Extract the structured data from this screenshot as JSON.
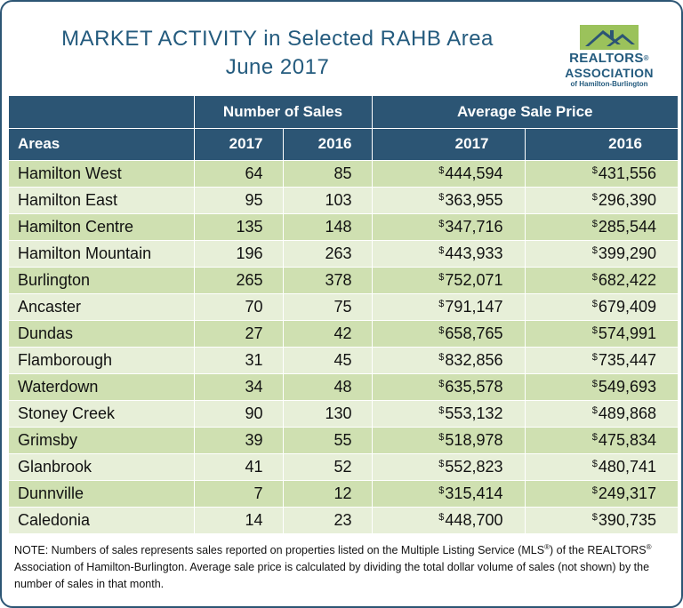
{
  "header": {
    "title_line1": "MARKET ACTIVITY in Selected RAHB Area",
    "title_line2": "June 2017"
  },
  "logo": {
    "icon": "house-roof-icon",
    "line1": "REALTORS",
    "line1_mark": "®",
    "line2": "ASSOCIATION",
    "line3": "of Hamilton-Burlington",
    "colors": {
      "roof_green": "#9bc25b",
      "roof_blue": "#2c5574",
      "text_blue": "#245b7e"
    }
  },
  "table": {
    "group_headers": {
      "sales": "Number of Sales",
      "price": "Average Sale Price"
    },
    "columns": {
      "area": "Areas",
      "sales_2017": "2017",
      "sales_2016": "2016",
      "price_2017": "2017",
      "price_2016": "2016"
    },
    "currency_symbol": "$",
    "colors": {
      "header_bg": "#2c5574",
      "row_dark": "#cfe0b1",
      "row_light": "#e7efd8"
    },
    "rows": [
      {
        "area": "Hamilton West",
        "sales_2017": "64",
        "sales_2016": "85",
        "price_2017": "444,594",
        "price_2016": "431,556"
      },
      {
        "area": "Hamilton East",
        "sales_2017": "95",
        "sales_2016": "103",
        "price_2017": "363,955",
        "price_2016": "296,390"
      },
      {
        "area": "Hamilton Centre",
        "sales_2017": "135",
        "sales_2016": "148",
        "price_2017": "347,716",
        "price_2016": "285,544"
      },
      {
        "area": "Hamilton Mountain",
        "sales_2017": "196",
        "sales_2016": "263",
        "price_2017": "443,933",
        "price_2016": "399,290"
      },
      {
        "area": "Burlington",
        "sales_2017": "265",
        "sales_2016": "378",
        "price_2017": "752,071",
        "price_2016": "682,422"
      },
      {
        "area": "Ancaster",
        "sales_2017": "70",
        "sales_2016": "75",
        "price_2017": "791,147",
        "price_2016": "679,409"
      },
      {
        "area": "Dundas",
        "sales_2017": "27",
        "sales_2016": "42",
        "price_2017": "658,765",
        "price_2016": "574,991"
      },
      {
        "area": "Flamborough",
        "sales_2017": "31",
        "sales_2016": "45",
        "price_2017": "832,856",
        "price_2016": "735,447"
      },
      {
        "area": "Waterdown",
        "sales_2017": "34",
        "sales_2016": "48",
        "price_2017": "635,578",
        "price_2016": "549,693"
      },
      {
        "area": "Stoney Creek",
        "sales_2017": "90",
        "sales_2016": "130",
        "price_2017": "553,132",
        "price_2016": "489,868"
      },
      {
        "area": "Grimsby",
        "sales_2017": "39",
        "sales_2016": "55",
        "price_2017": "518,978",
        "price_2016": "475,834"
      },
      {
        "area": "Glanbrook",
        "sales_2017": "41",
        "sales_2016": "52",
        "price_2017": "552,823",
        "price_2016": "480,741"
      },
      {
        "area": "Dunnville",
        "sales_2017": "7",
        "sales_2016": "12",
        "price_2017": "315,414",
        "price_2016": "249,317"
      },
      {
        "area": "Caledonia",
        "sales_2017": "14",
        "sales_2016": "23",
        "price_2017": "448,700",
        "price_2016": "390,735"
      }
    ]
  },
  "note": {
    "part1": "NOTE:  Numbers of sales represents sales reported on properties listed on the Multiple Listing Service (MLS",
    "mark1": "®",
    "part2": ") of the REALTORS",
    "mark2": "®",
    "part3": " Association of Hamilton-Burlington.  Average sale price is calculated by dividing the total dollar volume of sales (not shown) by the number of sales in that month."
  }
}
